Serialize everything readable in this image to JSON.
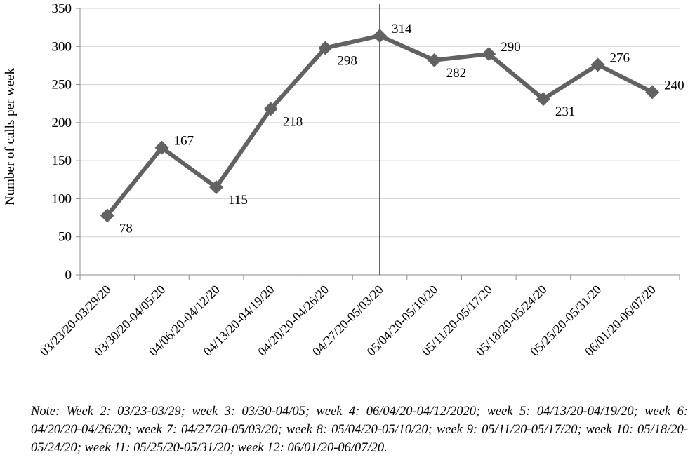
{
  "chart_data": {
    "type": "line",
    "ylabel": "Number of calls per week",
    "xlabel": "",
    "categories": [
      "03/23/20-03/29/20",
      "03/30/20-04/05/20",
      "04/06/20-04/12/20",
      "04/13/20-04/19/20",
      "04/20/20-04/26/20",
      "04/27/20-05/03/20",
      "05/04/20-05/10/20",
      "05/11/20-05/17/20",
      "05/18/20-05/24/20",
      "05/25/20-05/31/20",
      "06/01/20-06/07/20"
    ],
    "series": [
      {
        "values": [
          78,
          167,
          115,
          218,
          298,
          314,
          282,
          290,
          231,
          276,
          240
        ]
      }
    ],
    "data_labels": [
      "78",
      "167",
      "115",
      "218",
      "298",
      "314",
      "282",
      "290",
      "231",
      "276",
      "240"
    ],
    "ylim": [
      0,
      350
    ],
    "yticks": [
      0,
      50,
      100,
      150,
      200,
      250,
      300,
      350
    ],
    "ytick_labels": [
      "0",
      "50",
      "100",
      "150",
      "200",
      "250",
      "300",
      "350"
    ],
    "grid": true,
    "reference_line_category": "04/27/20-05/03/20",
    "line_color": "#626262",
    "marker": "diamond",
    "grid_color": "#d0d0d0",
    "axis_color": "#8c8c8c"
  },
  "note": "Note: Week 2: 03/23-03/29; week 3: 03/30-04/05; week 4: 06/04/20-04/12/2020; week 5: 04/13/20-04/19/20; week 6: 04/20/20-04/26/20; week 7: 04/27/20-05/03/20; week 8: 05/04/20-05/10/20; week 9: 05/11/20-05/17/20; week 10: 05/18/20-05/24/20; week 11: 05/25/20-05/31/20; week 12: 06/01/20-06/07/20."
}
